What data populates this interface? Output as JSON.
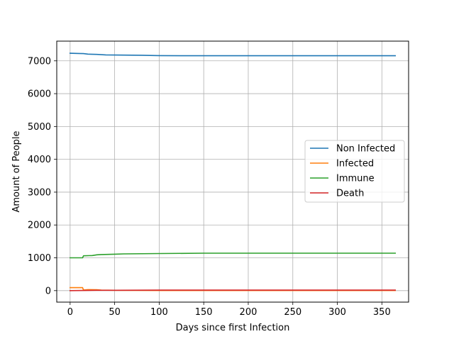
{
  "chart_data": {
    "type": "line",
    "title": "",
    "xlabel": "Days since first Infection",
    "ylabel": "Amount of People",
    "xlim": [
      -15,
      380
    ],
    "ylim": [
      -350,
      7600
    ],
    "xticks": [
      0,
      50,
      100,
      150,
      200,
      250,
      300,
      350
    ],
    "yticks": [
      0,
      1000,
      2000,
      3000,
      4000,
      5000,
      6000,
      7000
    ],
    "grid": true,
    "legend_position": "center-right",
    "series": [
      {
        "name": "Non Infected",
        "color": "#1f77b4",
        "x": [
          0,
          10,
          15,
          20,
          30,
          40,
          60,
          80,
          100,
          130,
          200,
          300,
          365
        ],
        "y": [
          7230,
          7225,
          7220,
          7205,
          7195,
          7180,
          7175,
          7170,
          7160,
          7155,
          7155,
          7155,
          7155
        ]
      },
      {
        "name": "Infected",
        "color": "#ff7f0e",
        "x": [
          0,
          14,
          15,
          20,
          30,
          35,
          50,
          100,
          200,
          365
        ],
        "y": [
          90,
          90,
          20,
          30,
          25,
          15,
          10,
          5,
          5,
          5
        ]
      },
      {
        "name": "Immune",
        "color": "#2ca02c",
        "x": [
          0,
          14,
          15,
          25,
          30,
          35,
          50,
          60,
          100,
          150,
          200,
          300,
          365
        ],
        "y": [
          1000,
          1000,
          1060,
          1070,
          1090,
          1100,
          1110,
          1120,
          1130,
          1140,
          1140,
          1140,
          1140
        ]
      },
      {
        "name": "Death",
        "color": "#d62728",
        "x": [
          0,
          15,
          30,
          50,
          100,
          200,
          365
        ],
        "y": [
          0,
          5,
          10,
          10,
          15,
          15,
          15
        ]
      }
    ]
  }
}
